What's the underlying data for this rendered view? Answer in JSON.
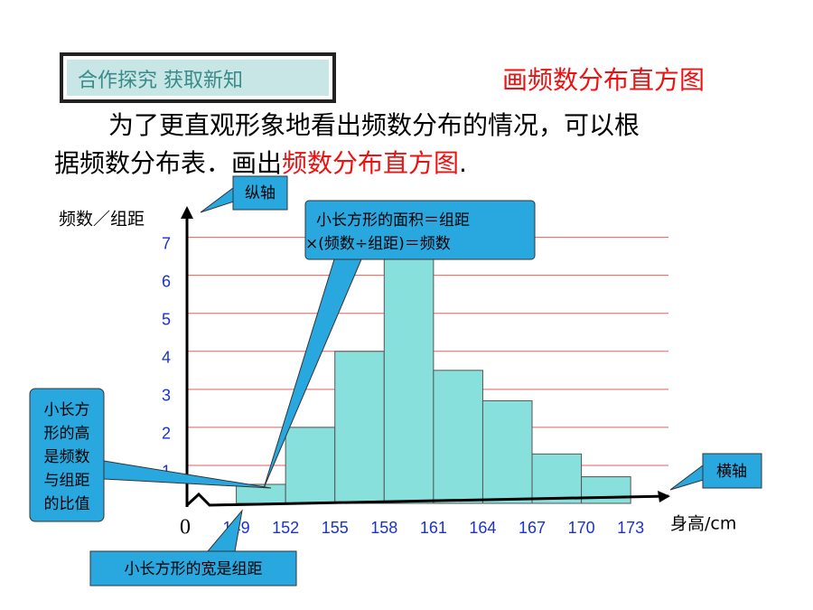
{
  "header": {
    "badge": "合作探究  获取新知",
    "title": "画频数分布直方图"
  },
  "paragraph": {
    "line1": "为了更直观形象地看出频数分布的情况，可以根",
    "line2": "据频数分布表．画出",
    "highlight": "频数分布直方图",
    "end": "."
  },
  "callouts": {
    "y_axis": "纵轴",
    "x_axis": "横轴",
    "area": [
      "小长方形的面积＝组距",
      "×(频数÷组距)＝频数"
    ],
    "height": [
      "小长方",
      "形的高",
      "是频数",
      "与组距",
      "的比值"
    ],
    "width": "小长方形的宽是组距"
  },
  "chart_data": {
    "type": "histogram",
    "x_label": "身高/cm",
    "y_label": "频数／组距",
    "origin_label": "0",
    "bins": [
      149,
      152,
      155,
      158,
      161,
      164,
      167,
      170,
      173
    ],
    "values": [
      0.5,
      2,
      4,
      6.5,
      3.5,
      2.7,
      1.3,
      0.7
    ],
    "color": "#88e0dc",
    "grid_color": "#e06060",
    "xlim": [
      146,
      175.3
    ],
    "ylim": [
      0,
      7.3
    ],
    "yticks": [
      1,
      2,
      3,
      4,
      5,
      6,
      7
    ],
    "grid": true
  }
}
